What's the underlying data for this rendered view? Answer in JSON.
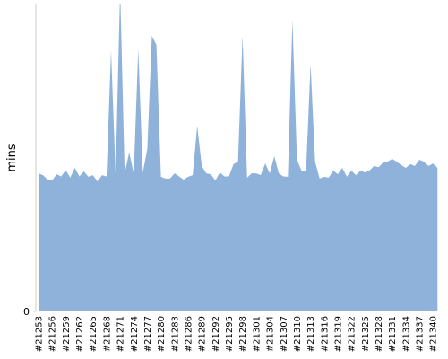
{
  "chart_data": {
    "type": "area",
    "y_label": "mins",
    "color": "#8fb2db",
    "categories": [
      "#21253",
      null,
      null,
      "#21256",
      null,
      null,
      "#21259",
      null,
      null,
      "#21262",
      null,
      null,
      "#21265",
      null,
      null,
      "#21268",
      null,
      null,
      "#21271",
      null,
      null,
      "#21274",
      null,
      null,
      "#21277",
      null,
      null,
      "#21280",
      null,
      null,
      "#21283",
      null,
      null,
      "#21286",
      null,
      null,
      "#21289",
      null,
      null,
      "#21292",
      null,
      null,
      "#21295",
      null,
      null,
      "#21298",
      null,
      null,
      "#21301",
      null,
      null,
      "#21304",
      null,
      null,
      "#21307",
      null,
      null,
      "#21310",
      null,
      null,
      "#21313",
      null,
      null,
      "#21316",
      null,
      null,
      "#21319",
      null,
      null,
      "#21322",
      null,
      null,
      "#21325",
      null,
      null,
      "#21328",
      null,
      null,
      "#21331",
      null,
      null,
      "#21334",
      null,
      null,
      "#21337",
      null,
      null,
      "#21340",
      null
    ],
    "values": [
      45,
      44.4,
      43,
      42.7,
      44.7,
      44,
      46,
      43.6,
      46.8,
      44,
      45.6,
      43.9,
      44.4,
      42.4,
      44.4,
      44,
      85,
      44.4,
      105,
      45,
      51.8,
      45,
      85.4,
      45.3,
      53,
      89.8,
      86.8,
      43.9,
      43.3,
      43.3,
      45,
      44,
      43,
      43.9,
      44.4,
      60.5,
      47.4,
      45,
      44.7,
      42.7,
      45.3,
      44,
      44,
      48,
      48.8,
      89.8,
      43.6,
      45,
      45,
      44.4,
      48.2,
      45,
      50.6,
      45,
      44,
      43.9,
      95,
      49.4,
      45.9,
      45.6,
      80.4,
      48.8,
      43.3,
      43.9,
      43.6,
      45.9,
      44.7,
      46.8,
      43.9,
      45.9,
      44.4,
      45.9,
      45.3,
      45.9,
      47.4,
      47,
      48.5,
      48.8,
      49.7,
      48.8,
      47.7,
      46.8,
      48,
      47.4,
      49.4,
      48.8,
      47.4,
      48.2,
      46.8
    ],
    "ylim": [
      0,
      100
    ],
    "yticks": [
      0
    ]
  }
}
